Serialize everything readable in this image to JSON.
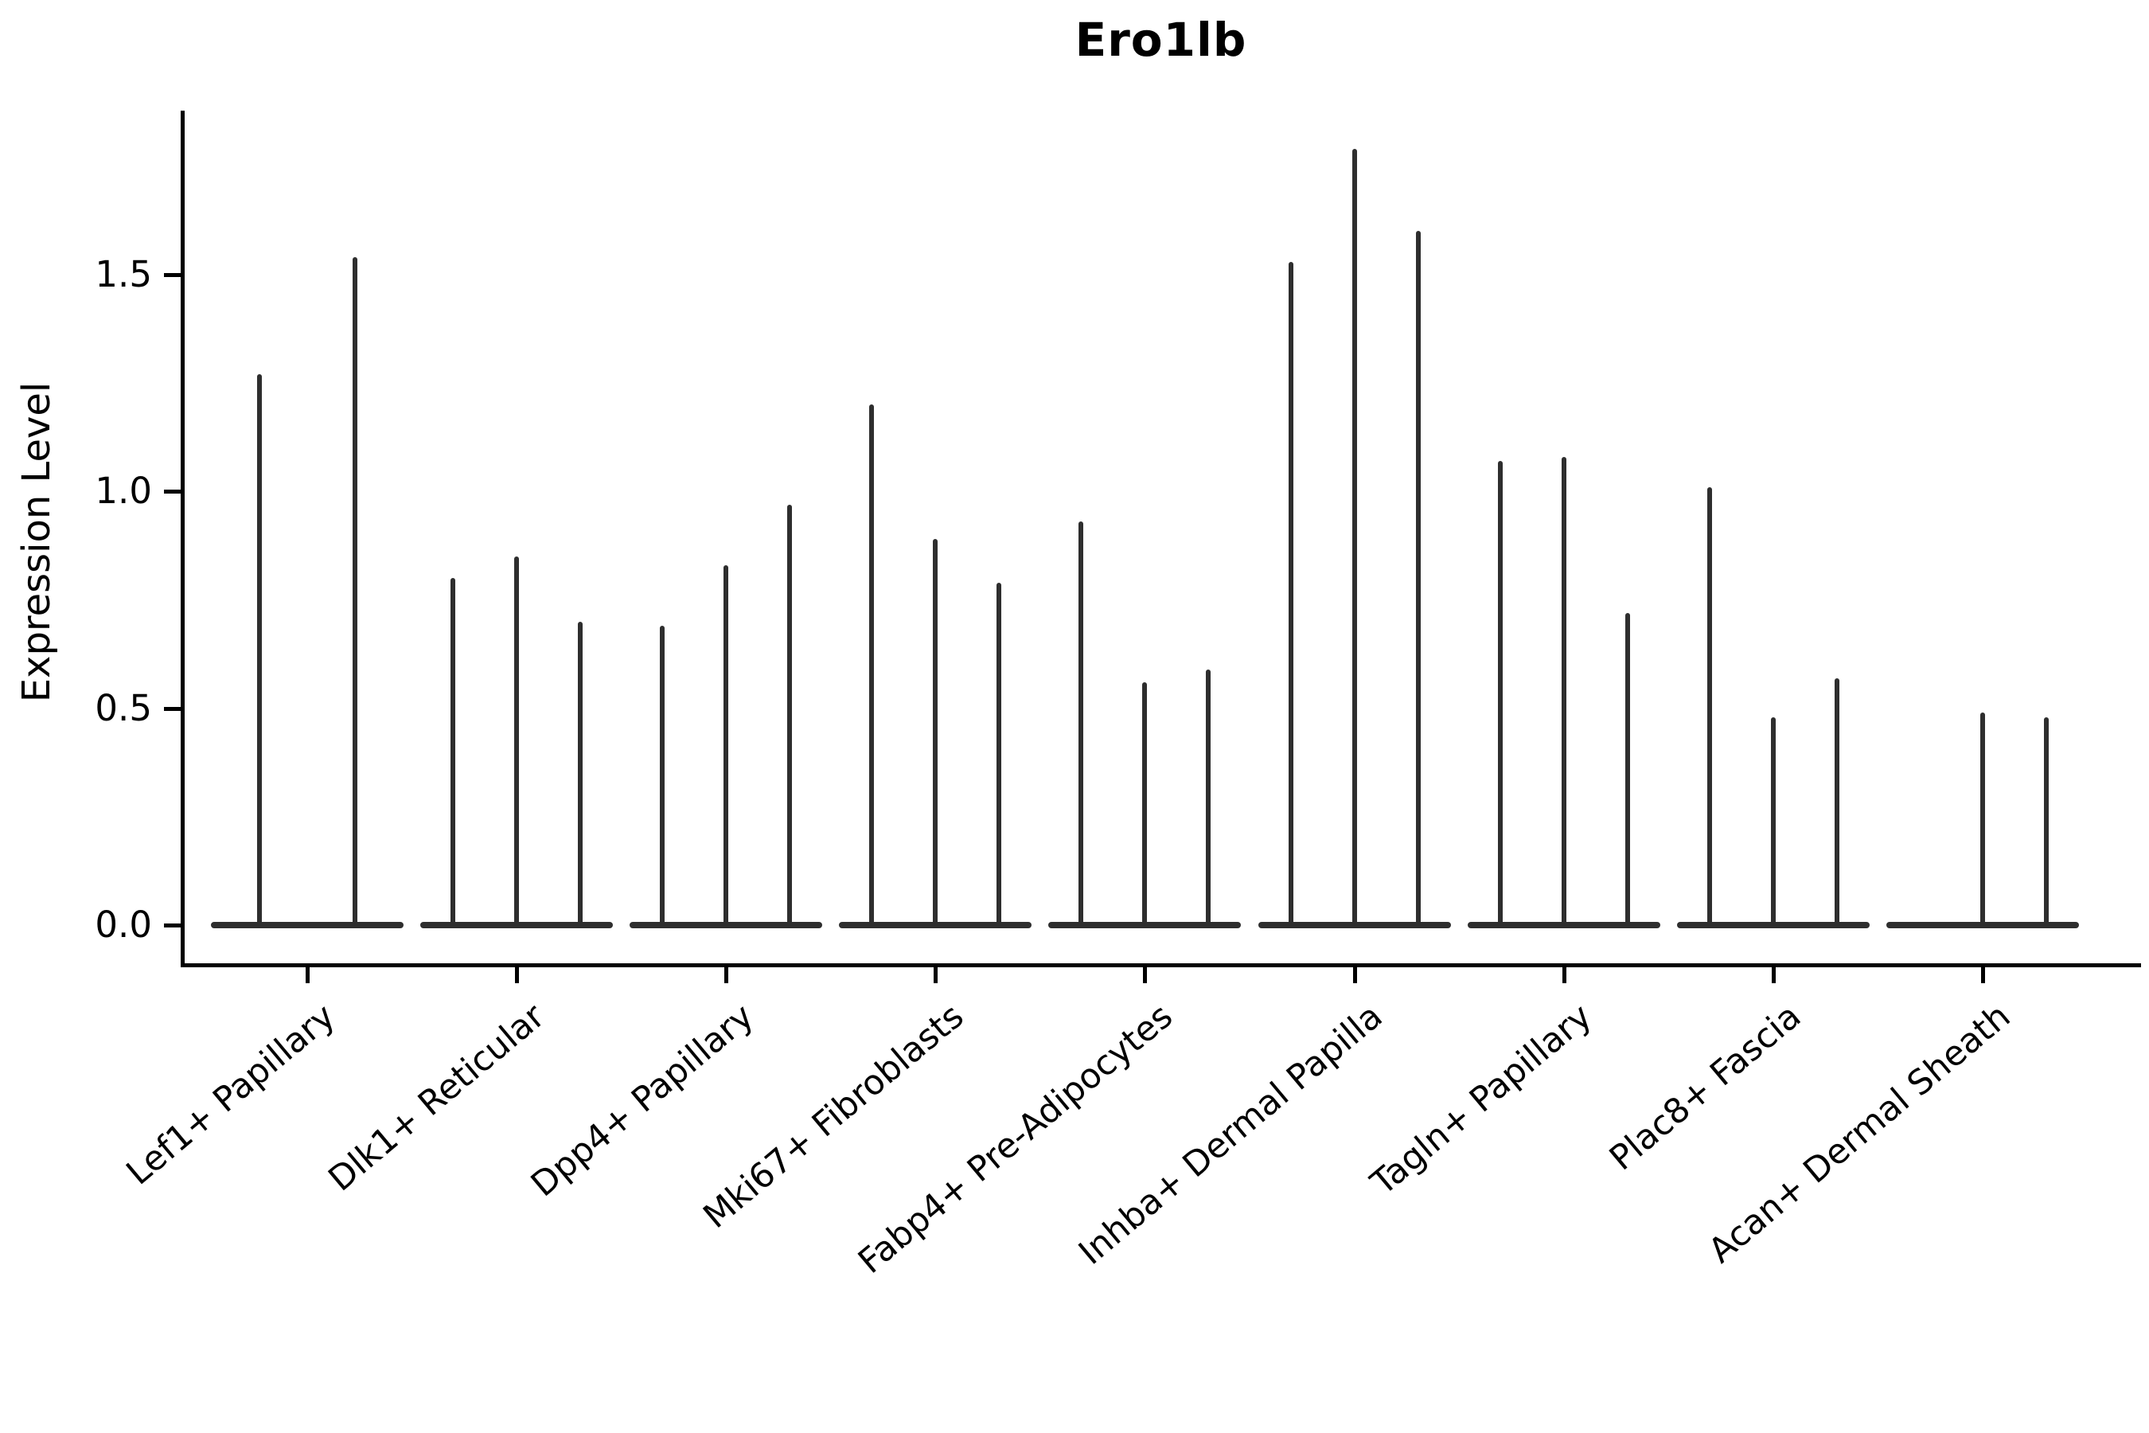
{
  "chart_data": {
    "type": "violin",
    "title": "Ero1lb",
    "ylabel": "Expression Level",
    "xlabel": "",
    "ylim": [
      0,
      1.88
    ],
    "ytick_labels": [
      "0.0",
      "0.5",
      "1.0",
      "1.5"
    ],
    "ytick_values": [
      0.0,
      0.5,
      1.0,
      1.5
    ],
    "grid": false,
    "legend_position": "none",
    "categories": [
      "Lef1+ Papillary",
      "Dlk1+ Reticular",
      "Dpp4+ Papillary",
      "Mki67+ Fibroblasts",
      "Fabp4+ Pre-Adipocytes",
      "Inhba+ Dermal Papilla",
      "Tagln+ Papillary",
      "Plac8+ Fascia",
      "Acan+ Dermal Sheath"
    ],
    "series": [
      {
        "category": "Lef1+ Papillary",
        "violin_max_values": [
          1.27,
          1.54
        ]
      },
      {
        "category": "Dlk1+ Reticular",
        "violin_max_values": [
          0.8,
          0.85,
          0.7
        ]
      },
      {
        "category": "Dpp4+ Papillary",
        "violin_max_values": [
          0.69,
          0.83,
          0.97
        ]
      },
      {
        "category": "Mki67+ Fibroblasts",
        "violin_max_values": [
          1.2,
          0.89,
          0.79
        ]
      },
      {
        "category": "Fabp4+ Pre-Adipocytes",
        "violin_max_values": [
          0.93,
          0.56,
          0.59
        ]
      },
      {
        "category": "Inhba+ Dermal Papilla",
        "violin_max_values": [
          1.53,
          1.79,
          1.6
        ]
      },
      {
        "category": "Tagln+ Papillary",
        "violin_max_values": [
          1.07,
          1.08,
          0.72
        ]
      },
      {
        "category": "Plac8+ Fascia",
        "violin_max_values": [
          1.01,
          0.48,
          0.57
        ]
      },
      {
        "category": "Acan+ Dermal Sheath",
        "violin_max_values": [
          0.0,
          0.49,
          0.48
        ]
      }
    ],
    "violin_shape_note": "needle-thin violins: flat baseline at 0 with narrow vertical spike to max value",
    "colors": {
      "violin": "#2e2e2e",
      "axis": "#000000",
      "text": "#000000",
      "background": "#ffffff"
    }
  }
}
